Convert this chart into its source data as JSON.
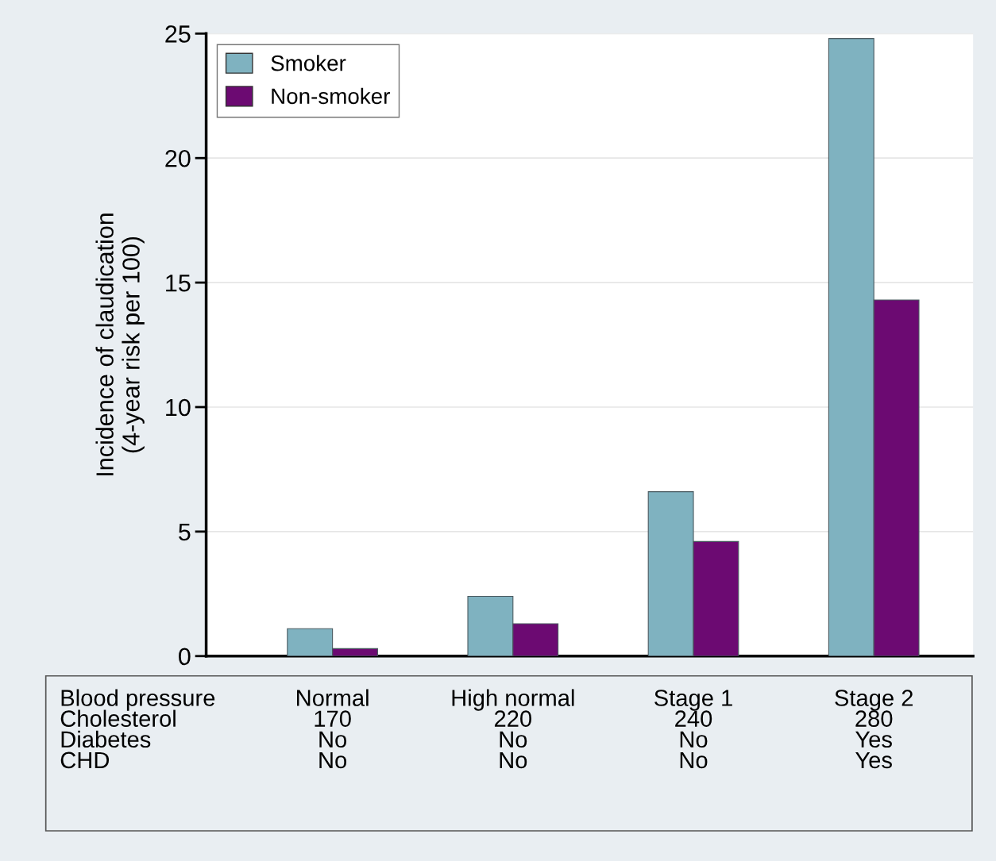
{
  "chart_data": {
    "type": "bar",
    "ylabel": "Incidence of claudication\n(4-year risk per 100)",
    "categories": [
      "Normal\n170\nNo\nNo",
      "High normal\n220\nNo\nNo",
      "Stage 1\n240\nNo\nNo",
      "Stage 2\n280\nYes\nYes"
    ],
    "series": [
      {
        "name": "Smoker",
        "color": "#7fb2c0",
        "values": [
          1.1,
          2.4,
          6.6,
          24.8
        ]
      },
      {
        "name": "Non-smoker",
        "color": "#6c0a72",
        "values": [
          0.3,
          1.3,
          4.6,
          14.3
        ]
      }
    ],
    "annotations": [
      "Blood pressure\nCholesterol\nDiabetes\nCHD"
    ],
    "ylim": [
      0,
      25
    ],
    "yticks": [
      0,
      5,
      10,
      15,
      20,
      25
    ],
    "grid": "y",
    "legend": "top left"
  }
}
